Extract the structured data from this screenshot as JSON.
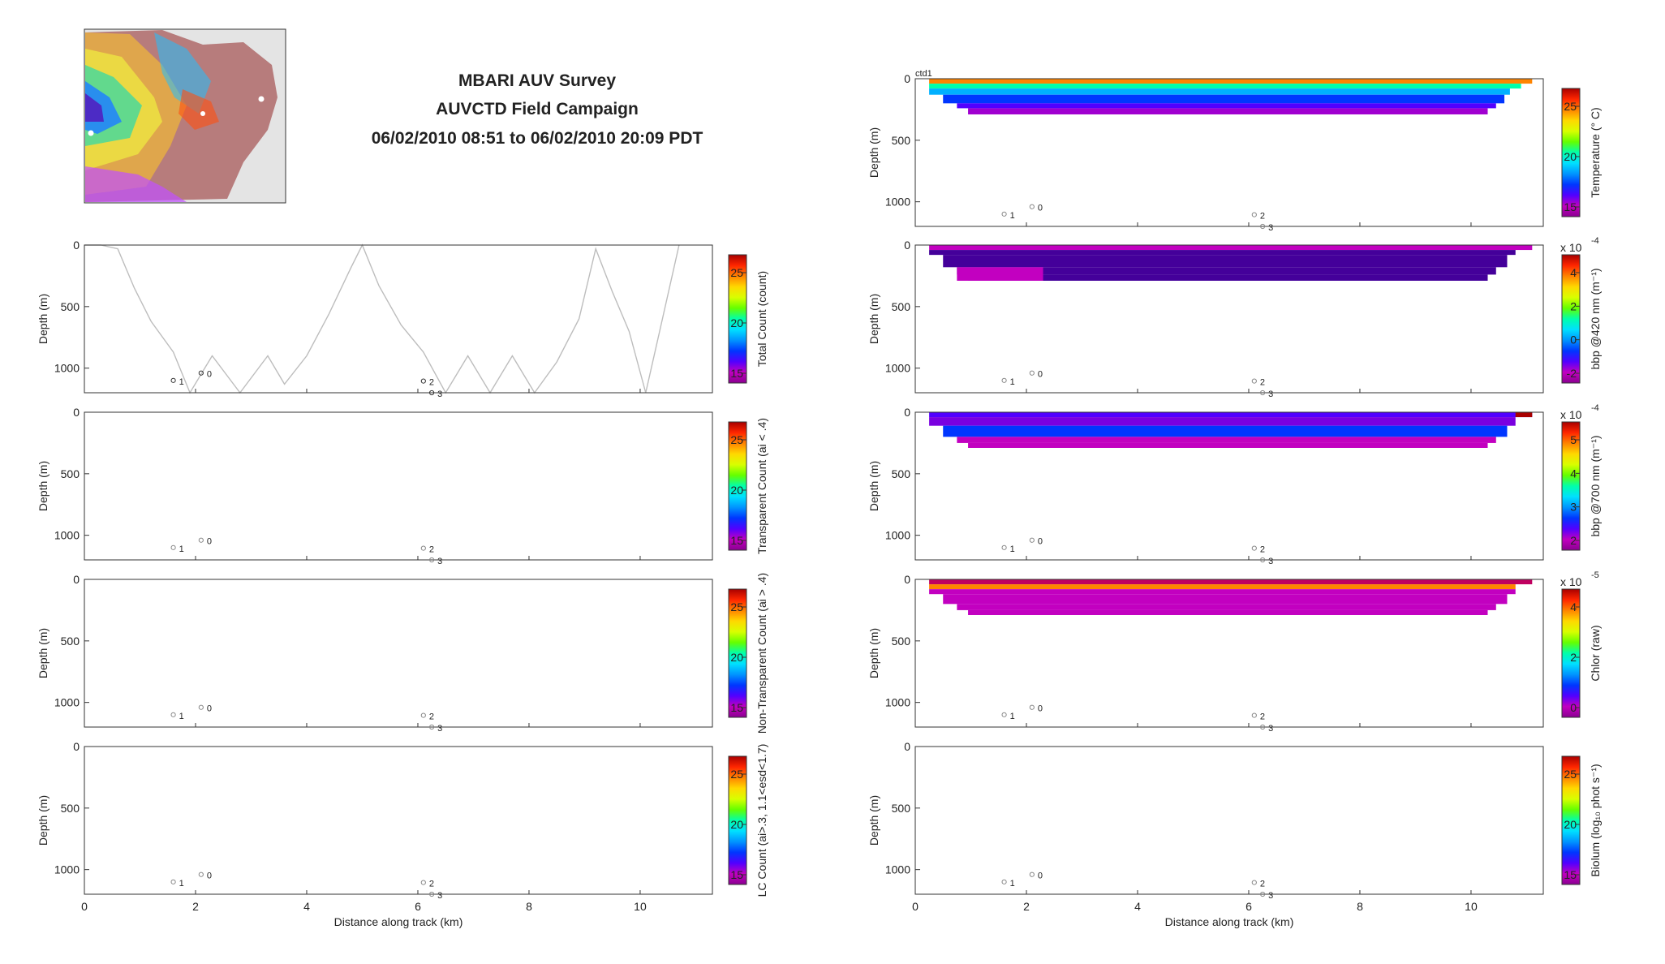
{
  "title": {
    "line1": "MBARI AUV Survey",
    "line2": "AUVCTD Field Campaign",
    "line3": "06/02/2010 08:51 to 06/02/2010 20:09 PDT"
  },
  "map_icon": "bathymetry-map-icon",
  "colormap": [
    "#8a0090",
    "#c200c0",
    "#5200ff",
    "#0036ff",
    "#0094ff",
    "#00e0ff",
    "#00ffaa",
    "#64ff00",
    "#d8ff00",
    "#ffd800",
    "#ff8400",
    "#ff2600",
    "#a80000"
  ],
  "common": {
    "ylabel": "Depth (m)",
    "xlabel": "Distance along track (km)",
    "yticks": [
      "0",
      "500",
      "1000"
    ],
    "xticks": [
      "0",
      "2",
      "4",
      "6",
      "8",
      "10"
    ],
    "ylim": [
      0,
      1200
    ],
    "xlim": [
      0,
      11.3
    ]
  },
  "waypoints": [
    {
      "label": "1",
      "x": 1.6,
      "depth": 1100
    },
    {
      "label": "0",
      "x": 2.1,
      "depth": 1040
    },
    {
      "label": "2",
      "x": 6.1,
      "depth": 1105
    },
    {
      "label": "3",
      "x": 6.25,
      "depth": 1200
    }
  ],
  "panels_left": [
    {
      "id": "total",
      "cbar_label": "Total Count (count)",
      "cbar_ticks": [
        "25",
        "20",
        "15"
      ],
      "has_track": true
    },
    {
      "id": "transparent",
      "cbar_label": "Transparent Count (ai < .4)",
      "cbar_ticks": [
        "25",
        "20",
        "15"
      ]
    },
    {
      "id": "nontransparent",
      "cbar_label": "Non-Transparent Count (ai > .4)",
      "cbar_ticks": [
        "25",
        "20",
        "15"
      ]
    },
    {
      "id": "lc",
      "cbar_label": "LC Count (ai>.3, 1.1<esd<1.7)",
      "cbar_ticks": [
        "25",
        "20",
        "15"
      ],
      "show_xaxis": true
    }
  ],
  "panels_right": [
    {
      "id": "temperature",
      "cbar_label": "Temperature (° C)",
      "cbar_ticks": [
        "25",
        "20",
        "15"
      ],
      "corner_label": "ctd1"
    },
    {
      "id": "bbp420",
      "cbar_label": "bbp @420 nm (m⁻¹)",
      "cbar_ticks": [
        "4",
        "2",
        "0",
        "-2"
      ],
      "exponent": "x 10",
      "exponent_power": "-4"
    },
    {
      "id": "bbp700",
      "cbar_label": "bbp @700 nm (m⁻¹)",
      "cbar_ticks": [
        "5",
        "4",
        "3",
        "2"
      ],
      "exponent": "x 10",
      "exponent_power": "-4"
    },
    {
      "id": "chlor",
      "cbar_label": "Chlor (raw)",
      "cbar_ticks": [
        "4",
        "2",
        "0"
      ],
      "exponent": "x 10",
      "exponent_power": "-5"
    },
    {
      "id": "biolum",
      "cbar_label": "Biolum (log₁₀ phot s⁻¹)",
      "cbar_ticks": [
        "25",
        "20",
        "15"
      ],
      "show_xaxis": true
    }
  ],
  "chart_data": [
    {
      "type": "line",
      "title": "Total Count (count)",
      "xlabel": "",
      "ylabel": "Depth (m)",
      "xlim": [
        0,
        11.3
      ],
      "ylim": [
        1200,
        0
      ],
      "series": [
        {
          "x": [
            0,
            0.3,
            0.6,
            0.9,
            1.2,
            1.6,
            1.9,
            2.3,
            2.8,
            3.3,
            3.6,
            4.0,
            4.4,
            4.8,
            5.0,
            5.3,
            5.7,
            6.1,
            6.5,
            6.9,
            7.3,
            7.7,
            8.1,
            8.5,
            8.9,
            9.2,
            9.5,
            9.8,
            10.1,
            10.4,
            10.7
          ],
          "y": [
            0,
            0,
            30,
            350,
            620,
            870,
            1200,
            900,
            1200,
            900,
            1130,
            900,
            560,
            180,
            0,
            330,
            650,
            870,
            1200,
            900,
            1200,
            900,
            1200,
            950,
            600,
            30,
            380,
            700,
            1200,
            600,
            0
          ]
        }
      ]
    },
    {
      "type": "heatmap",
      "title": "Transparent Count (ai < .4)",
      "ylabel": "Depth (m)",
      "xlim": [
        0,
        11.3
      ],
      "ylim": [
        1200,
        0
      ]
    },
    {
      "type": "heatmap",
      "title": "Non-Transparent Count (ai > .4)",
      "ylabel": "Depth (m)",
      "xlim": [
        0,
        11.3
      ],
      "ylim": [
        1200,
        0
      ]
    },
    {
      "type": "heatmap",
      "title": "LC Count (ai>.3, 1.1<esd<1.7)",
      "xlabel": "Distance along track (km)",
      "ylabel": "Depth (m)",
      "xlim": [
        0,
        11.3
      ],
      "ylim": [
        1200,
        0
      ]
    },
    {
      "type": "heatmap",
      "title": "Temperature (° C)",
      "ylabel": "Depth (m)",
      "xlim": [
        0,
        11.3
      ],
      "ylim": [
        1200,
        0
      ],
      "layers": [
        {
          "x0": 0.25,
          "x1": 11.1,
          "d0": 0,
          "d1": 40,
          "color": "#ff8400"
        },
        {
          "x0": 0.25,
          "x1": 10.9,
          "d0": 40,
          "d1": 80,
          "color": "#00ffaa"
        },
        {
          "x0": 0.25,
          "x1": 10.7,
          "d0": 80,
          "d1": 130,
          "color": "#00b0ff"
        },
        {
          "x0": 0.5,
          "x1": 10.6,
          "d0": 130,
          "d1": 200,
          "color": "#0036ff"
        },
        {
          "x0": 0.75,
          "x1": 10.45,
          "d0": 200,
          "d1": 240,
          "color": "#5200ff"
        },
        {
          "x0": 0.95,
          "x1": 10.3,
          "d0": 240,
          "d1": 290,
          "color": "#a000d0"
        }
      ]
    },
    {
      "type": "heatmap",
      "title": "bbp @420 nm (m⁻¹)",
      "ylabel": "Depth (m)",
      "xlim": [
        0,
        11.3
      ],
      "ylim": [
        1200,
        0
      ],
      "layers": [
        {
          "x0": 0.25,
          "x1": 11.1,
          "d0": 0,
          "d1": 40,
          "color": "#c200c0"
        },
        {
          "x0": 0.25,
          "x1": 10.8,
          "d0": 40,
          "d1": 80,
          "color": "#44009a"
        },
        {
          "x0": 0.5,
          "x1": 10.65,
          "d0": 80,
          "d1": 180,
          "color": "#44009a"
        },
        {
          "x0": 0.75,
          "x1": 10.45,
          "d0": 180,
          "d1": 240,
          "color": "#44009a"
        },
        {
          "x0": 0.95,
          "x1": 10.3,
          "d0": 240,
          "d1": 290,
          "color": "#44009a"
        },
        {
          "x0": 0.75,
          "x1": 2.3,
          "d0": 180,
          "d1": 290,
          "color": "#c200c0"
        }
      ]
    },
    {
      "type": "heatmap",
      "title": "bbp @700 nm (m⁻¹)",
      "ylabel": "Depth (m)",
      "xlim": [
        0,
        11.3
      ],
      "ylim": [
        1200,
        0
      ],
      "layers": [
        {
          "x0": 0.25,
          "x1": 11.1,
          "d0": 0,
          "d1": 40,
          "color": "#5200ff"
        },
        {
          "x0": 0.25,
          "x1": 10.8,
          "d0": 40,
          "d1": 110,
          "color": "#7a00e0"
        },
        {
          "x0": 0.5,
          "x1": 10.65,
          "d0": 110,
          "d1": 200,
          "color": "#0036ff"
        },
        {
          "x0": 0.75,
          "x1": 10.45,
          "d0": 200,
          "d1": 250,
          "color": "#c200c0"
        },
        {
          "x0": 0.95,
          "x1": 10.3,
          "d0": 250,
          "d1": 290,
          "color": "#c200c0"
        },
        {
          "x0": 10.8,
          "x1": 11.1,
          "d0": 0,
          "d1": 40,
          "color": "#a80000"
        }
      ]
    },
    {
      "type": "heatmap",
      "title": "Chlor (raw)",
      "ylabel": "Depth (m)",
      "xlim": [
        0,
        11.3
      ],
      "ylim": [
        1200,
        0
      ],
      "layers": [
        {
          "x0": 0.25,
          "x1": 11.1,
          "d0": 0,
          "d1": 40,
          "color": "#c00060"
        },
        {
          "x0": 0.25,
          "x1": 10.8,
          "d0": 40,
          "d1": 80,
          "color": "#ff8400"
        },
        {
          "x0": 0.25,
          "x1": 10.8,
          "d0": 80,
          "d1": 120,
          "color": "#c200c0"
        },
        {
          "x0": 0.5,
          "x1": 10.65,
          "d0": 120,
          "d1": 200,
          "color": "#c200c0"
        },
        {
          "x0": 0.75,
          "x1": 10.45,
          "d0": 200,
          "d1": 250,
          "color": "#c200c0"
        },
        {
          "x0": 0.95,
          "x1": 10.3,
          "d0": 250,
          "d1": 290,
          "color": "#c200c0"
        }
      ]
    },
    {
      "type": "heatmap",
      "title": "Biolum (log₁₀ phot s⁻¹)",
      "xlabel": "Distance along track (km)",
      "ylabel": "Depth (m)",
      "xlim": [
        0,
        11.3
      ],
      "ylim": [
        1200,
        0
      ]
    }
  ]
}
